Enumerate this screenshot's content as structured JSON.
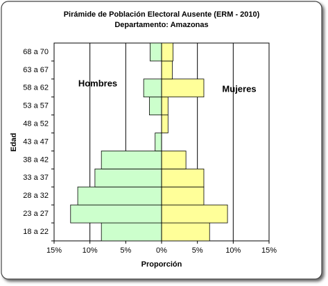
{
  "chart_data": {
    "type": "pyramid",
    "title": "Pirámide de Población Electoral Ausente (ERM - 2010)",
    "subtitle": "Departamento: Amazonas",
    "xlabel": "Proporción",
    "ylabel": "Edad",
    "categories": [
      "18 a 22",
      "23 a 27",
      "28 a 32",
      "33 a 37",
      "38 a 42",
      "43 a 47",
      "48 a 52",
      "53 a 57",
      "58 a 62",
      "63 a 67",
      "68 a 70"
    ],
    "series": [
      {
        "name": "Hombres",
        "color": "#ccffcc",
        "values": [
          -8.4,
          -12.7,
          -11.7,
          -9.3,
          -8.4,
          -0.9,
          0,
          -1.7,
          -2.5,
          0,
          -1.6
        ]
      },
      {
        "name": "Mujeres",
        "color": "#ffff99",
        "values": [
          6.7,
          9.2,
          5.9,
          5.9,
          3.4,
          0,
          0.9,
          0.9,
          5.9,
          1.5,
          1.6
        ]
      }
    ],
    "xlim": [
      -15,
      15
    ],
    "xticks": [
      {
        "value": -15,
        "label": "15%"
      },
      {
        "value": -10,
        "label": "10%"
      },
      {
        "value": -5,
        "label": "5%"
      },
      {
        "value": 0,
        "label": "0%"
      },
      {
        "value": 5,
        "label": "5%"
      },
      {
        "value": 10,
        "label": "10%"
      },
      {
        "value": 15,
        "label": "15%"
      }
    ],
    "grid": true
  }
}
